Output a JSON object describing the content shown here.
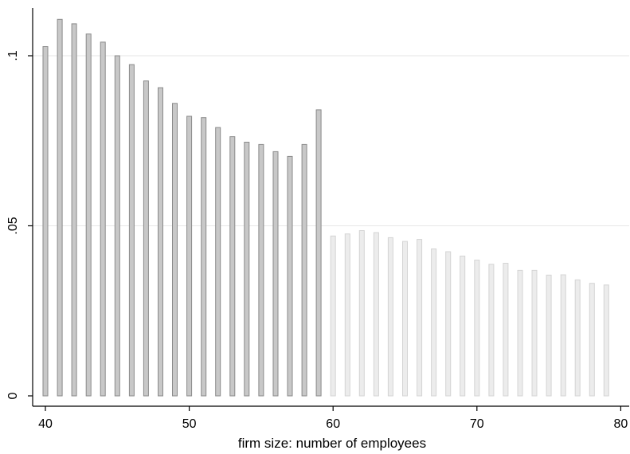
{
  "chart_data": {
    "type": "bar",
    "title": "",
    "xlabel": "firm size: number of employees",
    "ylabel": "",
    "xlim": [
      39.5,
      80.5
    ],
    "ylim": [
      0,
      0.111
    ],
    "x_ticks": [
      40,
      50,
      60,
      70,
      80
    ],
    "x_tick_labels": [
      "40",
      "50",
      "60",
      "70",
      "80"
    ],
    "y_ticks": [
      0,
      0.05,
      0.1
    ],
    "y_tick_labels": [
      "0",
      ".05",
      ".1"
    ],
    "grid": "horizontal",
    "legend": "none",
    "colors": {
      "below_60_fill": "#c8c8c8",
      "below_60_stroke": "#8a8a8a",
      "from_60_fill": "#ececec",
      "from_60_stroke": "#d4d4d4",
      "grid": "#e6e6e6",
      "axis": "#000000"
    },
    "series": [
      {
        "x": [
          40,
          41,
          42,
          43,
          44,
          45,
          46,
          47,
          48,
          49,
          50,
          51,
          52,
          53,
          54,
          55,
          56,
          57,
          58,
          59
        ],
        "values": [
          0.1027,
          0.1107,
          0.1094,
          0.1064,
          0.104,
          0.1,
          0.0974,
          0.0926,
          0.0906,
          0.086,
          0.0822,
          0.0818,
          0.0789,
          0.0762,
          0.0746,
          0.0739,
          0.0718,
          0.0704,
          0.0739,
          0.0841
        ]
      },
      {
        "x": [
          60,
          61,
          62,
          63,
          64,
          65,
          66,
          67,
          68,
          69,
          70,
          71,
          72,
          73,
          74,
          75,
          76,
          77,
          78,
          79
        ],
        "values": [
          0.047,
          0.0476,
          0.0486,
          0.048,
          0.0465,
          0.0454,
          0.046,
          0.0432,
          0.0424,
          0.0411,
          0.0399,
          0.0387,
          0.039,
          0.0369,
          0.0369,
          0.0355,
          0.0356,
          0.0341,
          0.0331,
          0.0326
        ]
      }
    ]
  }
}
